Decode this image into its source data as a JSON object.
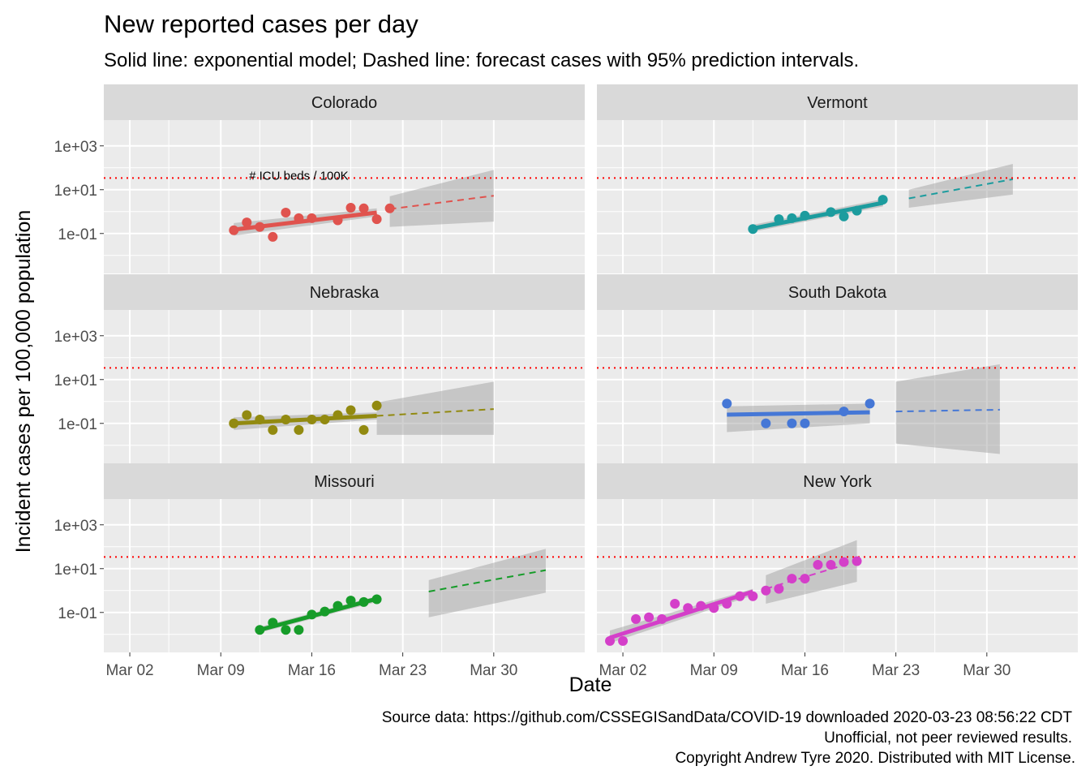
{
  "title": "New reported cases per day",
  "subtitle": "Solid line: exponential model; Dashed line: forecast cases with 95% prediction intervals.",
  "caption": [
    "Source data: https://github.com/CSSEGISandData/COVID-19 downloaded  2020-03-23 08:56:22 CDT",
    "Unofficial, not peer reviewed results.",
    "Copyright Andrew Tyre 2020. Distributed with MIT License."
  ],
  "chart_data": {
    "type": "scatter",
    "xlabel": "Date",
    "ylabel": "Incident cases per 100,000 population",
    "y_scale": "log10",
    "ylim": [
      0.0015,
      15000
    ],
    "xlim": [
      "2020-02-29",
      "2020-04-06"
    ],
    "x_ticks": [
      {
        "date": "2020-03-02",
        "label": "Mar 02"
      },
      {
        "date": "2020-03-09",
        "label": "Mar 09"
      },
      {
        "date": "2020-03-16",
        "label": "Mar 16"
      },
      {
        "date": "2020-03-23",
        "label": "Mar 23"
      },
      {
        "date": "2020-03-30",
        "label": "Mar 30"
      }
    ],
    "y_ticks": [
      {
        "value": 0.1,
        "label": "1e-01"
      },
      {
        "value": 10,
        "label": "1e+01"
      },
      {
        "value": 1000,
        "label": "1e+03"
      }
    ],
    "reference_line": {
      "value": 34,
      "label": "# ICU beds / 100K",
      "color": "#ff0000",
      "style": "dotted"
    },
    "grid": true,
    "facet_layout": {
      "rows": 3,
      "cols": 2
    },
    "panels": [
      {
        "name": "Colorado",
        "color": "#e0534e",
        "show_reference_label": true,
        "points": [
          [
            "2020-03-10",
            0.14
          ],
          [
            "2020-03-11",
            0.32
          ],
          [
            "2020-03-12",
            0.2
          ],
          [
            "2020-03-13",
            0.07
          ],
          [
            "2020-03-14",
            0.9
          ],
          [
            "2020-03-15",
            0.5
          ],
          [
            "2020-03-16",
            0.5
          ],
          [
            "2020-03-18",
            0.4
          ],
          [
            "2020-03-19",
            1.5
          ],
          [
            "2020-03-20",
            1.4
          ],
          [
            "2020-03-21",
            0.45
          ],
          [
            "2020-03-22",
            1.4
          ]
        ],
        "fit": {
          "start": [
            "2020-03-10",
            0.15
          ],
          "end": [
            "2020-03-21",
            0.9
          ],
          "lower": [
            0.08,
            0.6
          ],
          "upper": [
            0.3,
            1.4
          ]
        },
        "forecast": {
          "start": [
            "2020-03-22",
            1.3
          ],
          "end": [
            "2020-03-30",
            5.3
          ],
          "lower": [
            0.2,
            0.35
          ],
          "upper": [
            5,
            80
          ]
        }
      },
      {
        "name": "Vermont",
        "color": "#1c9c9e",
        "show_reference_label": false,
        "points": [
          [
            "2020-03-12",
            0.16
          ],
          [
            "2020-03-14",
            0.45
          ],
          [
            "2020-03-15",
            0.5
          ],
          [
            "2020-03-16",
            0.65
          ],
          [
            "2020-03-18",
            0.95
          ],
          [
            "2020-03-19",
            0.6
          ],
          [
            "2020-03-20",
            1.1
          ],
          [
            "2020-03-22",
            3.5
          ]
        ],
        "fit": {
          "start": [
            "2020-03-12",
            0.17
          ],
          "end": [
            "2020-03-22",
            2.5
          ],
          "lower": [
            0.12,
            1.7
          ],
          "upper": [
            0.25,
            3.7
          ]
        },
        "forecast": {
          "start": [
            "2020-03-24",
            4
          ],
          "end": [
            "2020-04-01",
            30
          ],
          "lower": [
            1.5,
            6
          ],
          "upper": [
            10,
            150
          ]
        }
      },
      {
        "name": "Nebraska",
        "color": "#928a10",
        "show_reference_label": false,
        "points": [
          [
            "2020-03-10",
            0.1
          ],
          [
            "2020-03-11",
            0.24
          ],
          [
            "2020-03-12",
            0.15
          ],
          [
            "2020-03-13",
            0.05
          ],
          [
            "2020-03-14",
            0.15
          ],
          [
            "2020-03-15",
            0.05
          ],
          [
            "2020-03-16",
            0.15
          ],
          [
            "2020-03-17",
            0.15
          ],
          [
            "2020-03-18",
            0.24
          ],
          [
            "2020-03-19",
            0.4
          ],
          [
            "2020-03-20",
            0.05
          ],
          [
            "2020-03-21",
            0.65
          ]
        ],
        "fit": {
          "start": [
            "2020-03-10",
            0.1
          ],
          "end": [
            "2020-03-21",
            0.22
          ],
          "lower": [
            0.05,
            0.15
          ],
          "upper": [
            0.19,
            0.32
          ]
        },
        "forecast": {
          "start": [
            "2020-03-21",
            0.22
          ],
          "end": [
            "2020-03-30",
            0.45
          ],
          "lower": [
            0.03,
            0.03
          ],
          "upper": [
            0.9,
            8
          ]
        }
      },
      {
        "name": "South Dakota",
        "color": "#4577d6",
        "show_reference_label": false,
        "points": [
          [
            "2020-03-10",
            0.8
          ],
          [
            "2020-03-13",
            0.1
          ],
          [
            "2020-03-15",
            0.1
          ],
          [
            "2020-03-16",
            0.1
          ],
          [
            "2020-03-19",
            0.35
          ],
          [
            "2020-03-21",
            0.8
          ]
        ],
        "fit": {
          "start": [
            "2020-03-10",
            0.25
          ],
          "end": [
            "2020-03-21",
            0.32
          ],
          "lower": [
            0.04,
            0.1
          ],
          "upper": [
            0.6,
            0.8
          ]
        },
        "forecast": {
          "start": [
            "2020-03-23",
            0.35
          ],
          "end": [
            "2020-03-31",
            0.42
          ],
          "lower": [
            0.012,
            0.004
          ],
          "upper": [
            8,
            50
          ]
        }
      },
      {
        "name": "Missouri",
        "color": "#169c29",
        "show_reference_label": false,
        "points": [
          [
            "2020-03-12",
            0.016
          ],
          [
            "2020-03-13",
            0.034
          ],
          [
            "2020-03-14",
            0.016
          ],
          [
            "2020-03-15",
            0.016
          ],
          [
            "2020-03-16",
            0.08
          ],
          [
            "2020-03-17",
            0.11
          ],
          [
            "2020-03-18",
            0.2
          ],
          [
            "2020-03-19",
            0.35
          ],
          [
            "2020-03-20",
            0.3
          ],
          [
            "2020-03-21",
            0.4
          ]
        ],
        "fit": {
          "start": [
            "2020-03-12",
            0.016
          ],
          "end": [
            "2020-03-21",
            0.42
          ],
          "lower": [
            0.012,
            0.3
          ],
          "upper": [
            0.022,
            0.55
          ]
        },
        "forecast": {
          "start": [
            "2020-03-25",
            0.9
          ],
          "end": [
            "2020-04-03",
            8.5
          ],
          "lower": [
            0.06,
            0.8
          ],
          "upper": [
            3,
            80
          ]
        }
      },
      {
        "name": "New York",
        "color": "#d43fc9",
        "show_reference_label": false,
        "points": [
          [
            "2020-03-01",
            0.005
          ],
          [
            "2020-03-02",
            0.005
          ],
          [
            "2020-03-03",
            0.05
          ],
          [
            "2020-03-04",
            0.06
          ],
          [
            "2020-03-05",
            0.05
          ],
          [
            "2020-03-06",
            0.25
          ],
          [
            "2020-03-07",
            0.16
          ],
          [
            "2020-03-08",
            0.2
          ],
          [
            "2020-03-09",
            0.16
          ],
          [
            "2020-03-10",
            0.25
          ],
          [
            "2020-03-11",
            0.55
          ],
          [
            "2020-03-12",
            0.55
          ],
          [
            "2020-03-13",
            1
          ],
          [
            "2020-03-14",
            1.2
          ],
          [
            "2020-03-15",
            3.5
          ],
          [
            "2020-03-16",
            3.5
          ],
          [
            "2020-03-17",
            15
          ],
          [
            "2020-03-18",
            15
          ],
          [
            "2020-03-19",
            20
          ],
          [
            "2020-03-20",
            22
          ]
        ],
        "fit": {
          "start": [
            "2020-03-01",
            0.007
          ],
          "end": [
            "2020-03-12",
            0.9
          ],
          "lower": [
            0.004,
            0.6
          ],
          "upper": [
            0.015,
            1.2
          ]
        },
        "forecast": {
          "start": [
            "2020-03-13",
            1.2
          ],
          "end": [
            "2020-03-20",
            22
          ],
          "lower": [
            0.25,
            2.5
          ],
          "upper": [
            5,
            200
          ]
        }
      }
    ]
  }
}
